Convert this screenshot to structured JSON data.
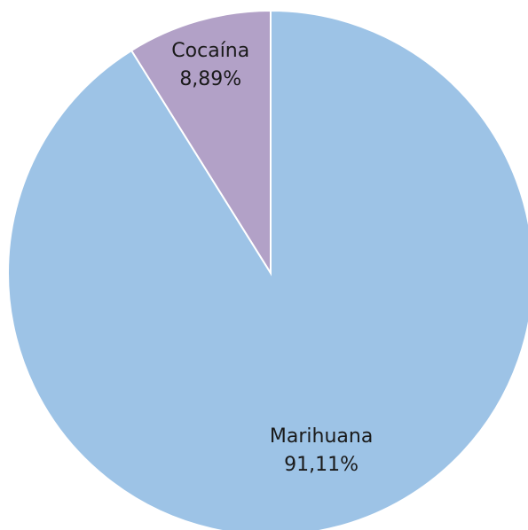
{
  "chart_data": {
    "type": "pie",
    "slices": [
      {
        "label": "Marihuana",
        "value": 91.11,
        "value_label": "91,11%",
        "color": "#9dc3e6"
      },
      {
        "label": "Cocaína",
        "value": 8.89,
        "value_label": "8,89%",
        "color": "#b2a1c7"
      }
    ],
    "start": "top",
    "direction": "clockwise",
    "legend": "none",
    "slice_border_color": "#ffffff"
  }
}
